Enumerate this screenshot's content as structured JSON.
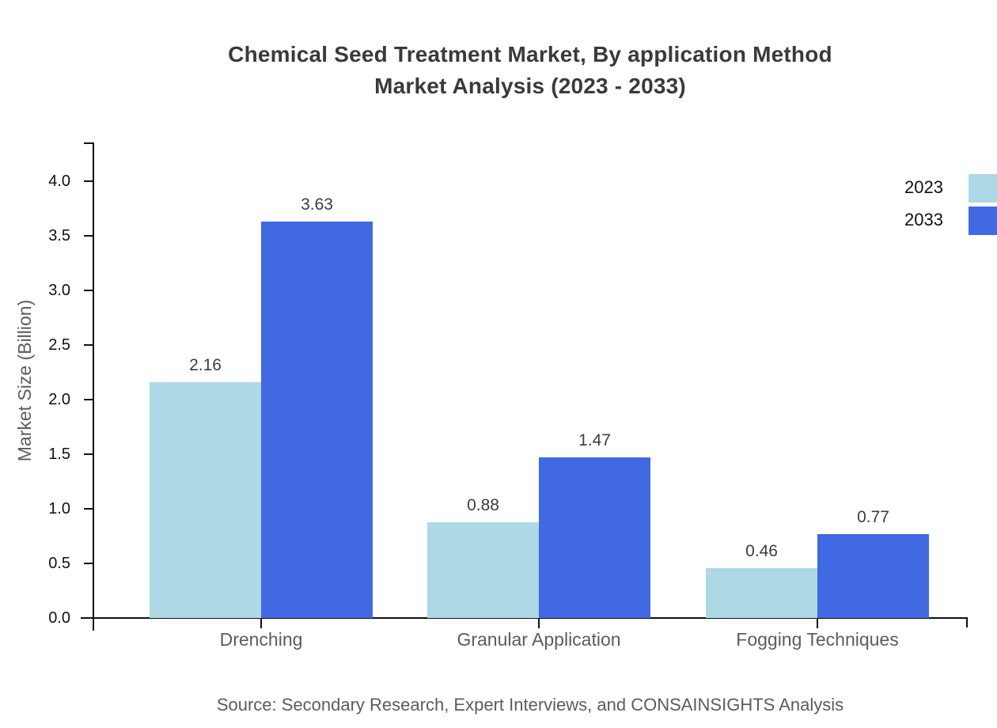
{
  "title": {
    "line1": "Chemical Seed Treatment Market, By application Method",
    "line2": "Market Analysis (2023 - 2033)"
  },
  "source_text": "Source: Secondary Research, Expert Interviews, and CONSAINSIGHTS Analysis",
  "chart_data": {
    "type": "bar",
    "title": "Chemical Seed Treatment Market, By application Method Market Analysis (2023 - 2033)",
    "categories": [
      "Drenching",
      "Granular Application",
      "Fogging Techniques"
    ],
    "series": [
      {
        "name": "2023",
        "color": "#ADD8E6",
        "values": [
          2.16,
          0.88,
          0.46
        ]
      },
      {
        "name": "2033",
        "color": "#4169E1",
        "values": [
          3.63,
          1.47,
          0.77
        ]
      }
    ],
    "xlabel": "",
    "ylabel": "Market Size (Billion)",
    "ylim": [
      0.0,
      4.0
    ],
    "ytick_step": 0.5,
    "ytick_labels": [
      "0.0",
      "0.5",
      "1.0",
      "1.5",
      "2.0",
      "2.5",
      "3.0",
      "3.5",
      "4.0"
    ],
    "grid": false,
    "legend_position": "top-right",
    "value_labels_shown": true,
    "axis_color": "#111111",
    "text_color": "#5c5c5c"
  }
}
